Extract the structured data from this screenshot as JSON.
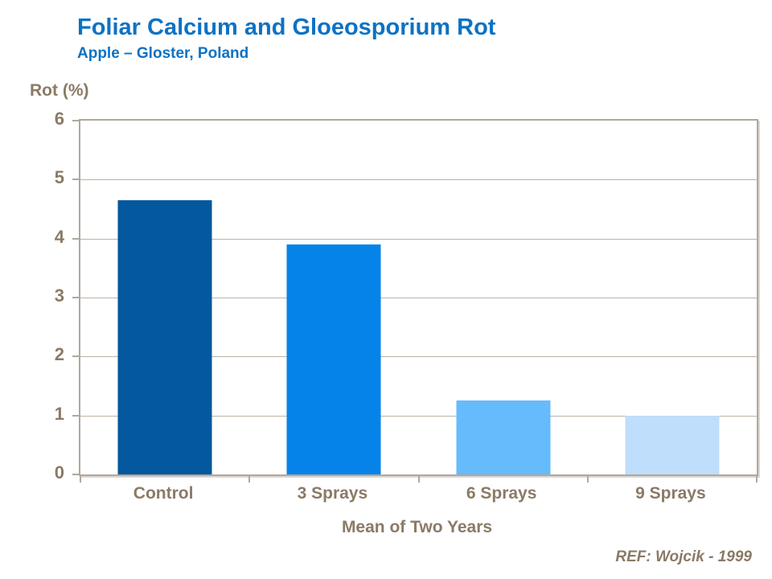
{
  "title": "Foliar Calcium and Gloeosporium Rot",
  "subtitle": "Apple – Gloster, Poland",
  "y_axis_title": "Rot (%)",
  "x_axis_title": "Mean of Two Years",
  "reference": "REF: Wojcik - 1999",
  "chart_data": {
    "type": "bar",
    "title": "Foliar Calcium and Gloeosporium Rot",
    "subtitle": "Apple – Gloster, Poland",
    "categories": [
      "Control",
      "3 Sprays",
      "6 Sprays",
      "9 Sprays"
    ],
    "values": [
      4.65,
      3.9,
      1.25,
      1.0
    ],
    "bar_colors": [
      "#04589e",
      "#0583e8",
      "#65bbfb",
      "#bedefb"
    ],
    "xlabel": "Mean of Two Years",
    "ylabel": "Rot (%)",
    "ylim": [
      0,
      6
    ],
    "yticks": [
      0,
      1,
      2,
      3,
      4,
      5,
      6
    ],
    "grid": true,
    "legend": false
  },
  "colors": {
    "title_text": "#0d72c4",
    "axis_text": "#8a7a66",
    "frame": "#b2a79a",
    "gridline": "#bdb3a6",
    "background": "#ffffff"
  }
}
